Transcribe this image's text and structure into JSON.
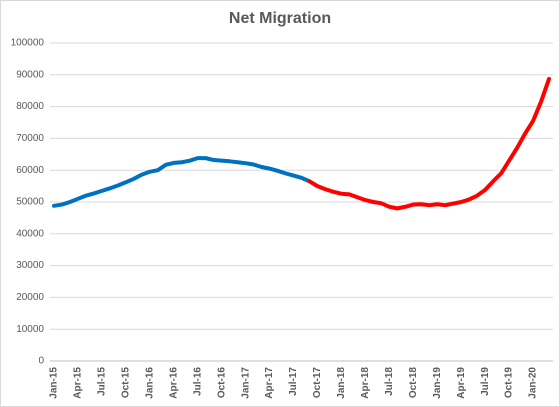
{
  "chart_data": {
    "type": "line",
    "title": "Net Migration",
    "categories": [
      "Jan-15",
      null,
      null,
      "Apr-15",
      null,
      null,
      "Jul-15",
      null,
      null,
      "Oct-15",
      null,
      null,
      "Jan-16",
      null,
      null,
      "Apr-16",
      null,
      null,
      "Jul-16",
      null,
      null,
      "Oct-16",
      null,
      null,
      "Jan-17",
      null,
      null,
      "Apr-17",
      null,
      null,
      "Jul-17",
      null,
      null,
      "Oct-17",
      null,
      null,
      "Jan-18",
      null,
      null,
      "Apr-18",
      null,
      null,
      "Jul-18",
      null,
      null,
      "Oct-18",
      null,
      null,
      "Jan-19",
      null,
      null,
      "Apr-19",
      null,
      null,
      "Jul-19",
      null,
      null,
      "Oct-19",
      null,
      null,
      "Jan-20",
      null,
      null
    ],
    "series": [
      {
        "name": null,
        "color": "#0070c0",
        "values": [
          48800,
          49200,
          50000,
          51000,
          52000,
          52700,
          53500,
          54300,
          55200,
          56200,
          57300,
          58600,
          59500,
          60000,
          61700,
          62300,
          62500,
          63000,
          63800,
          63800,
          63200,
          63000,
          62800,
          62500,
          62200,
          61800,
          61000,
          60500,
          59800,
          59000,
          58300,
          57600,
          56500,
          null,
          null,
          null,
          null,
          null,
          null,
          null,
          null,
          null,
          null,
          null,
          null,
          null,
          null,
          null,
          null,
          null,
          null,
          null,
          null,
          null,
          null,
          null,
          null,
          null,
          null,
          null,
          null,
          null,
          null
        ]
      },
      {
        "name": null,
        "color": "#ff0000",
        "values": [
          null,
          null,
          null,
          null,
          null,
          null,
          null,
          null,
          null,
          null,
          null,
          null,
          null,
          null,
          null,
          null,
          null,
          null,
          null,
          null,
          null,
          null,
          null,
          null,
          null,
          null,
          null,
          null,
          null,
          null,
          null,
          null,
          56500,
          55000,
          54000,
          53200,
          52600,
          52400,
          51500,
          50600,
          50000,
          49600,
          48500,
          48000,
          48500,
          49200,
          49300,
          49000,
          49300,
          49000,
          49500,
          50000,
          50800,
          52000,
          53800,
          56500,
          59000,
          63000,
          67000,
          71500,
          75500,
          81500,
          88700
        ]
      }
    ],
    "ylim": [
      0,
      100000
    ],
    "yticks": [
      0,
      10000,
      20000,
      30000,
      40000,
      50000,
      60000,
      70000,
      80000,
      90000,
      100000
    ],
    "grid": true
  }
}
